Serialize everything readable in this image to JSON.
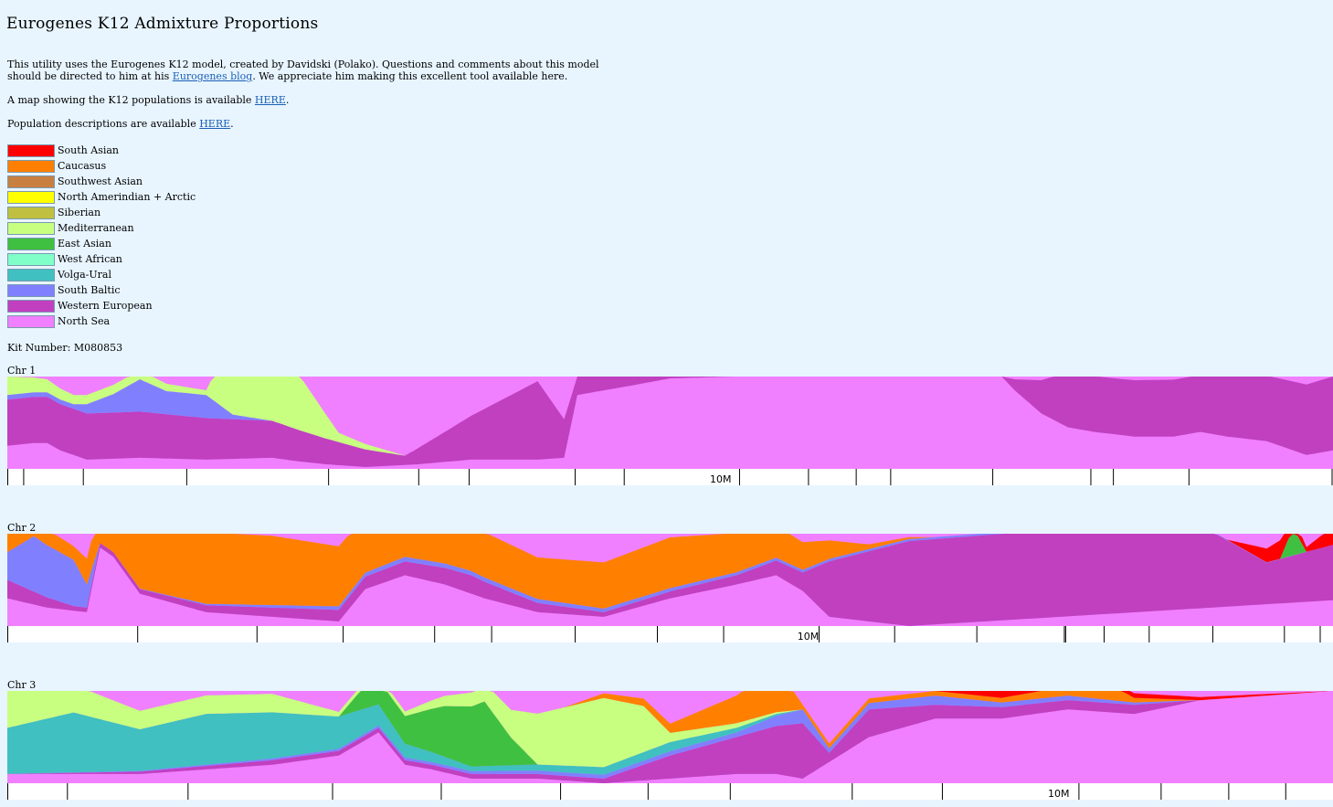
{
  "page": {
    "title": "Eurogenes K12 Admixture Proportions",
    "intro_text_1": "This utility uses the Eurogenes K12 model, created by Davidski (Polako). Questions and comments about this model should be directed to him at his ",
    "intro_link": "Eurogenes blog",
    "intro_text_2": ". We appreciate him making this excellent tool available here.",
    "map_text": "A map showing the K12 populations is available ",
    "map_link": "HERE",
    "map_after": ".",
    "desc_text": "Population descriptions are available ",
    "desc_link": "HERE",
    "desc_after": ".",
    "kit_label": "Kit Number:",
    "kit_value": "M080853"
  },
  "legend": [
    {
      "name": "South Asian",
      "color": "#ff0000"
    },
    {
      "name": "Caucasus",
      "color": "#ff8000"
    },
    {
      "name": "Southwest Asian",
      "color": "#c88040"
    },
    {
      "name": "North Amerindian + Arctic",
      "color": "#ffff00"
    },
    {
      "name": "Siberian",
      "color": "#c0c040"
    },
    {
      "name": "Mediterranean",
      "color": "#c8ff80"
    },
    {
      "name": "East Asian",
      "color": "#40c040"
    },
    {
      "name": "West African",
      "color": "#80ffc8"
    },
    {
      "name": "Volga-Ural",
      "color": "#40c0c0"
    },
    {
      "name": "South Baltic",
      "color": "#8080ff"
    },
    {
      "name": "Western European",
      "color": "#c040c0"
    },
    {
      "name": "North Sea",
      "color": "#f080ff"
    }
  ],
  "chart_data": [
    {
      "type": "area",
      "label": "Chr 1",
      "x_unit": "fraction of displayed chromosome segment",
      "tick_label": "10M",
      "tick_label_x": 0.53,
      "series": [
        {
          "name": "North Sea",
          "x": [
            0,
            0.02,
            0.03,
            0.04,
            0.06,
            0.1,
            0.15,
            0.2,
            0.22,
            0.24,
            0.27,
            0.31,
            0.35,
            0.4,
            0.42,
            0.43,
            0.47,
            0.5,
            0.55,
            0.6,
            0.65,
            0.7,
            0.75,
            0.76,
            0.78,
            0.8,
            0.82,
            0.85,
            0.88,
            0.9,
            0.92,
            0.95,
            0.98,
            1
          ],
          "values": [
            0.25,
            0.28,
            0.28,
            0.2,
            0.1,
            0.12,
            0.1,
            0.12,
            0.08,
            0.05,
            0.02,
            0.05,
            0.1,
            0.1,
            0.12,
            0.8,
            0.9,
            0.98,
            1,
            1,
            1,
            1,
            1,
            0.85,
            0.6,
            0.45,
            0.4,
            0.35,
            0.35,
            0.4,
            0.35,
            0.3,
            0.15,
            0.2
          ]
        },
        {
          "name": "Western European",
          "x": [
            0,
            0.1,
            0.2,
            0.3,
            0.4,
            0.43,
            0.47,
            0.5,
            0.55,
            0.6,
            0.65,
            0.7,
            0.75,
            0.8,
            0.9,
            1
          ],
          "values": [
            0.5,
            0.5,
            0.4,
            0.1,
            0.85,
            0.2,
            0.1,
            0.02,
            0,
            0,
            0,
            0,
            0,
            0.6,
            0.62,
            0.8
          ]
        },
        {
          "name": "South Baltic",
          "x": [
            0,
            0.05,
            0.08,
            0.1,
            0.12,
            0.15,
            0.17,
            0.2,
            1
          ],
          "values": [
            0.05,
            0.05,
            0.2,
            0.35,
            0.25,
            0.25,
            0.05,
            0,
            0
          ]
        },
        {
          "name": "Mediterranean",
          "x": [
            0,
            0.05,
            0.1,
            0.15,
            0.16,
            0.18,
            0.2,
            0.22,
            0.25,
            0.3,
            1
          ],
          "values": [
            0.2,
            0.1,
            0.1,
            0.05,
            0.45,
            0.7,
            0.8,
            0.6,
            0.1,
            0,
            0
          ]
        }
      ]
    },
    {
      "type": "area",
      "label": "Chr 2",
      "x_unit": "fraction of displayed chromosome segment",
      "tick_label": "10M",
      "tick_label_x": 0.596,
      "series": [
        {
          "name": "North Sea",
          "x": [
            0,
            0.03,
            0.06,
            0.07,
            0.08,
            0.1,
            0.15,
            0.2,
            0.25,
            0.27,
            0.3,
            0.33,
            0.36,
            0.4,
            0.45,
            0.5,
            0.55,
            0.58,
            0.6,
            0.62,
            0.65,
            0.68,
            1
          ],
          "values": [
            0.3,
            0.2,
            0.15,
            0.85,
            0.75,
            0.35,
            0.15,
            0.1,
            0.05,
            0.4,
            0.55,
            0.45,
            0.3,
            0.15,
            0.1,
            0.3,
            0.45,
            0.55,
            0.38,
            0.1,
            0.05,
            0,
            0.28
          ]
        },
        {
          "name": "Western European",
          "x": [
            0,
            0.05,
            0.1,
            0.3,
            0.35,
            0.4,
            0.45,
            0.55,
            0.6,
            0.62,
            0.68,
            0.8,
            0.9,
            0.95,
            1
          ],
          "values": [
            0.2,
            0.05,
            0.05,
            0.15,
            0.2,
            0.1,
            0.05,
            0.1,
            0.2,
            0.6,
            0.92,
            0.95,
            0.9,
            0.45,
            0.6
          ]
        },
        {
          "name": "South Baltic",
          "x": [
            0,
            0.02,
            0.05,
            0.07,
            0.08,
            0.3,
            1
          ],
          "values": [
            0.3,
            0.6,
            0.5,
            0.0,
            0,
            0.05,
            0
          ]
        },
        {
          "name": "Caucasus",
          "x": [
            0,
            0.05,
            0.1,
            0.2,
            0.3,
            0.4,
            0.5,
            0.6,
            0.65,
            0.7,
            1
          ],
          "values": [
            0.2,
            0.15,
            0.8,
            0.75,
            0.55,
            0.45,
            0.55,
            0.3,
            0.05,
            0,
            0
          ]
        },
        {
          "name": "East Asian",
          "x": [
            0,
            0.96,
            0.97,
            0.98,
            1
          ],
          "values": [
            0,
            0,
            0.3,
            0,
            0
          ]
        },
        {
          "name": "South Asian",
          "x": [
            0,
            0.92,
            0.94,
            0.96,
            0.98,
            1
          ],
          "values": [
            0,
            0,
            0.1,
            0.2,
            0.05,
            0.2
          ]
        }
      ]
    },
    {
      "type": "area",
      "label": "Chr 3",
      "x_unit": "fraction of displayed chromosome segment",
      "tick_label": "10M",
      "tick_label_x": 0.785,
      "series": [
        {
          "name": "North Sea",
          "x": [
            0,
            0.1,
            0.2,
            0.25,
            0.28,
            0.3,
            0.32,
            0.35,
            0.4,
            0.45,
            0.5,
            0.55,
            0.58,
            0.6,
            0.65,
            0.7,
            0.75,
            0.8,
            0.85,
            0.9,
            1
          ],
          "values": [
            0.1,
            0.1,
            0.2,
            0.3,
            0.55,
            0.2,
            0.15,
            0.05,
            0.05,
            0.0,
            0.05,
            0.1,
            0.1,
            0.05,
            0.5,
            0.7,
            0.7,
            0.8,
            0.75,
            0.9,
            1
          ]
        },
        {
          "name": "Western European",
          "x": [
            0,
            0.2,
            0.3,
            0.45,
            0.5,
            0.55,
            0.6,
            0.62,
            0.65,
            0.7,
            0.8,
            0.85,
            0.9,
            1
          ],
          "values": [
            0,
            0.05,
            0.05,
            0.05,
            0.25,
            0.4,
            0.6,
            0.1,
            0.3,
            0.15,
            0.1,
            0.1,
            0,
            0
          ]
        },
        {
          "name": "South Baltic",
          "x": [
            0,
            0.55,
            0.6,
            0.62,
            0.7,
            0.75,
            0.8,
            0.9,
            1
          ],
          "values": [
            0,
            0.05,
            0.15,
            0.05,
            0.1,
            0.05,
            0.05,
            0,
            0
          ]
        },
        {
          "name": "Volga-Ural",
          "x": [
            0,
            0.05,
            0.1,
            0.15,
            0.2,
            0.25,
            0.3,
            0.35,
            0.5,
            0.55,
            0.6,
            1
          ],
          "values": [
            0.5,
            0.65,
            0.45,
            0.55,
            0.5,
            0.35,
            0.15,
            0.05,
            0.1,
            0.05,
            0,
            0
          ]
        },
        {
          "name": "East Asian",
          "x": [
            0,
            0.25,
            0.27,
            0.3,
            0.33,
            0.36,
            0.38,
            0.4,
            1
          ],
          "values": [
            0,
            0,
            0.25,
            0.3,
            0.55,
            0.7,
            0.3,
            0,
            0
          ]
        },
        {
          "name": "Mediterranean",
          "x": [
            0,
            0.1,
            0.2,
            0.25,
            0.3,
            0.35,
            0.38,
            0.4,
            0.45,
            0.48,
            0.5,
            0.55,
            0.6,
            0.7,
            1
          ],
          "values": [
            0.4,
            0.2,
            0.2,
            0.05,
            0.05,
            0.15,
            0.3,
            0.55,
            0.75,
            0.5,
            0.1,
            0.05,
            0,
            0,
            0
          ]
        },
        {
          "name": "Caucasus",
          "x": [
            0,
            0.42,
            0.45,
            0.5,
            0.55,
            0.58,
            0.6,
            0.7,
            0.75,
            0.8,
            0.82,
            0.85,
            0.9,
            1
          ],
          "values": [
            0,
            0,
            0.05,
            0.1,
            0.3,
            0.5,
            0.05,
            0.05,
            0.05,
            0.1,
            0.25,
            0.05,
            0,
            0
          ]
        },
        {
          "name": "South Asian",
          "x": [
            0,
            0.7,
            0.72,
            0.75,
            0.78,
            0.8,
            0.85,
            1
          ],
          "values": [
            0,
            0,
            0.08,
            0.1,
            0.1,
            0.02,
            0.05,
            0
          ]
        }
      ]
    }
  ]
}
